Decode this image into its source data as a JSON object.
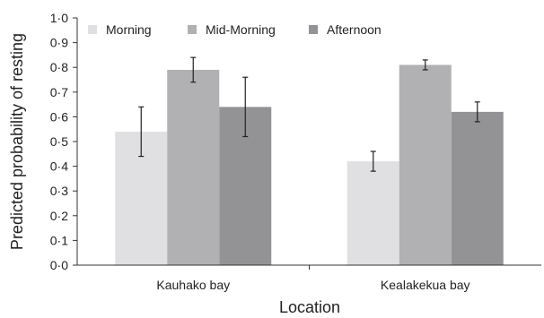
{
  "chart_data": {
    "type": "bar",
    "xlabel": "Location",
    "ylabel": "Predicted probability of resting",
    "ylim": [
      0,
      1
    ],
    "yticks": [
      0,
      0.1,
      0.2,
      0.3,
      0.4,
      0.5,
      0.6,
      0.7,
      0.8,
      0.9,
      1.0
    ],
    "ytick_labels": [
      "0·0",
      "0·1",
      "0·2",
      "0·3",
      "0·4",
      "0·5",
      "0·6",
      "0·7",
      "0·8",
      "0·9",
      "1·0"
    ],
    "categories": [
      "Kauhako bay",
      "Kealakekua bay"
    ],
    "legend_position": "top-left",
    "grid": false,
    "series": [
      {
        "name": "Morning",
        "color": "#e0e0e2",
        "values": [
          0.54,
          0.42
        ],
        "err_low": [
          0.44,
          0.38
        ],
        "err_high": [
          0.64,
          0.46
        ]
      },
      {
        "name": "Mid-Morning",
        "color": "#b1b1b3",
        "values": [
          0.79,
          0.81
        ],
        "err_low": [
          0.74,
          0.79
        ],
        "err_high": [
          0.84,
          0.83
        ]
      },
      {
        "name": "Afternoon",
        "color": "#939396",
        "values": [
          0.64,
          0.62
        ],
        "err_low": [
          0.52,
          0.58
        ],
        "err_high": [
          0.76,
          0.66
        ]
      }
    ]
  }
}
